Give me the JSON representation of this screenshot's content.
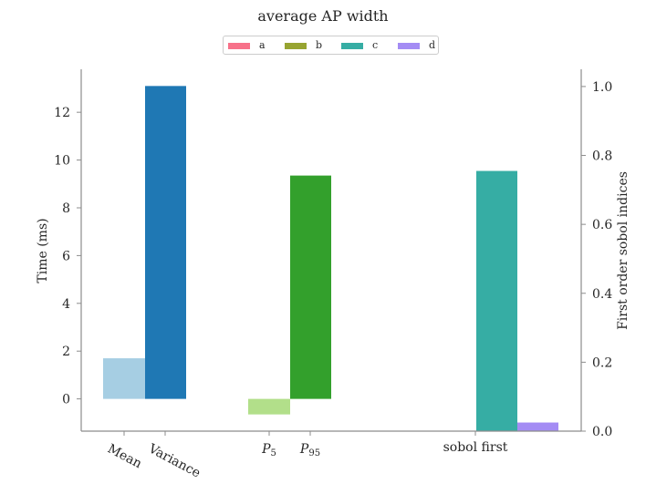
{
  "chart_data": {
    "type": "bar",
    "title": "average AP width",
    "legend": {
      "placement": "top-center",
      "entries": [
        {
          "label": "a",
          "color": "#f77189"
        },
        {
          "label": "b",
          "color": "#97a431"
        },
        {
          "label": "c",
          "color": "#36ada4"
        },
        {
          "label": "d",
          "color": "#a48cf4"
        }
      ]
    },
    "left_axis": {
      "ylabel": "Time (ms)",
      "ylim": [
        -1.35,
        13.8
      ],
      "ticks": [
        "0",
        "2",
        "4",
        "6",
        "8",
        "10",
        "12"
      ],
      "tick_values": [
        0,
        2,
        4,
        6,
        8,
        10,
        12
      ],
      "series": [
        {
          "category": "Mean",
          "value": 1.7,
          "color": "#a6cee3"
        },
        {
          "category": "Variance",
          "value": 13.1,
          "color": "#1f78b4"
        },
        {
          "category": "P5",
          "value": -0.65,
          "color": "#b2df8a"
        },
        {
          "category": "P95",
          "value": 9.35,
          "color": "#33a02c"
        }
      ]
    },
    "right_axis": {
      "ylabel": "First order sobol indices",
      "ylim": [
        0.0,
        1.05
      ],
      "ticks": [
        "0.0",
        "0.2",
        "0.4",
        "0.6",
        "0.8",
        "1.0"
      ],
      "tick_values": [
        0.0,
        0.2,
        0.4,
        0.6,
        0.8,
        1.0
      ],
      "series": [
        {
          "category": "sobol first",
          "name": "c",
          "value": 0.755,
          "color": "#36ada4"
        },
        {
          "category": "sobol first",
          "name": "d",
          "value": 0.025,
          "color": "#a48cf4"
        }
      ]
    },
    "x_tick_labels": [
      {
        "text": "Mean",
        "rotated": true
      },
      {
        "text": "Variance",
        "rotated": true
      },
      {
        "base": "P",
        "sub": "5",
        "rotated": false
      },
      {
        "base": "P",
        "sub": "95",
        "rotated": false
      },
      {
        "text": "sobol first",
        "rotated": false
      }
    ],
    "grid": false
  }
}
